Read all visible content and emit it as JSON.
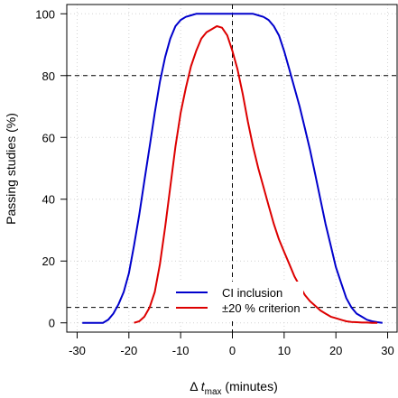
{
  "chart_data": {
    "type": "line",
    "title": "",
    "xlabel": {
      "prefix": "Δ ",
      "var": "t",
      "sub": "max",
      "suffix": " (minutes)"
    },
    "ylabel": "Passing studies (%)",
    "xlim": [
      -32,
      32
    ],
    "ylim": [
      -3,
      103
    ],
    "x_ticks": [
      -30,
      -20,
      -10,
      0,
      10,
      20,
      30
    ],
    "y_ticks": [
      0,
      20,
      40,
      60,
      80,
      100
    ],
    "grid": true,
    "reference_lines": {
      "horizontal": [
        80,
        5
      ],
      "vertical": [
        0
      ]
    },
    "legend": {
      "placement": "bottom-center"
    },
    "series": [
      {
        "name": "CI inclusion",
        "color": "#0000cc",
        "x": [
          -29,
          -25,
          -24,
          -23,
          -22,
          -21,
          -20,
          -19,
          -18,
          -17,
          -16,
          -15,
          -14,
          -13,
          -12,
          -11,
          -10,
          -9,
          -8,
          -7,
          -6,
          -5,
          -4,
          -3,
          -2,
          -1,
          0,
          1,
          2,
          3,
          4,
          5,
          6,
          7,
          8,
          9,
          10,
          11,
          12,
          13,
          14,
          15,
          16,
          17,
          18,
          19,
          20,
          21,
          22,
          23,
          24,
          25,
          26,
          27,
          28,
          29
        ],
        "values": [
          0,
          0,
          1,
          3,
          6,
          10,
          16,
          25,
          35,
          46,
          57,
          68,
          78,
          86,
          92,
          96,
          98,
          99,
          99.5,
          100,
          100,
          100,
          100,
          100,
          100,
          100,
          100,
          100,
          100,
          100,
          100,
          99.5,
          99,
          98,
          96,
          93,
          88,
          82,
          76,
          70,
          63,
          56,
          48,
          40,
          32,
          25,
          18,
          13,
          8,
          5,
          3,
          2,
          1,
          0.5,
          0.2,
          0
        ]
      },
      {
        "name": "±20 % criterion",
        "color": "#dd0000",
        "x": [
          -19,
          -18,
          -17,
          -16,
          -15,
          -14,
          -13,
          -12,
          -11,
          -10,
          -9,
          -8,
          -7,
          -6,
          -5,
          -4,
          -3,
          -2,
          -1,
          0,
          1,
          2,
          3,
          4,
          5,
          6,
          7,
          8,
          9,
          10,
          11,
          12,
          13,
          14,
          15,
          16,
          17,
          18,
          19,
          20,
          21,
          22,
          23,
          24,
          25,
          26,
          27,
          28
        ],
        "values": [
          0,
          0.5,
          2,
          5,
          10,
          19,
          31,
          44,
          57,
          68,
          76,
          83,
          88,
          92,
          94,
          95,
          96,
          95.5,
          93,
          88,
          82,
          74,
          65,
          57,
          50,
          44,
          38,
          32,
          27,
          23,
          19,
          15,
          12,
          9,
          7,
          5.5,
          4,
          3,
          2,
          1.5,
          1,
          0.5,
          0.3,
          0.2,
          0.1,
          0.1,
          0,
          0
        ]
      }
    ]
  }
}
